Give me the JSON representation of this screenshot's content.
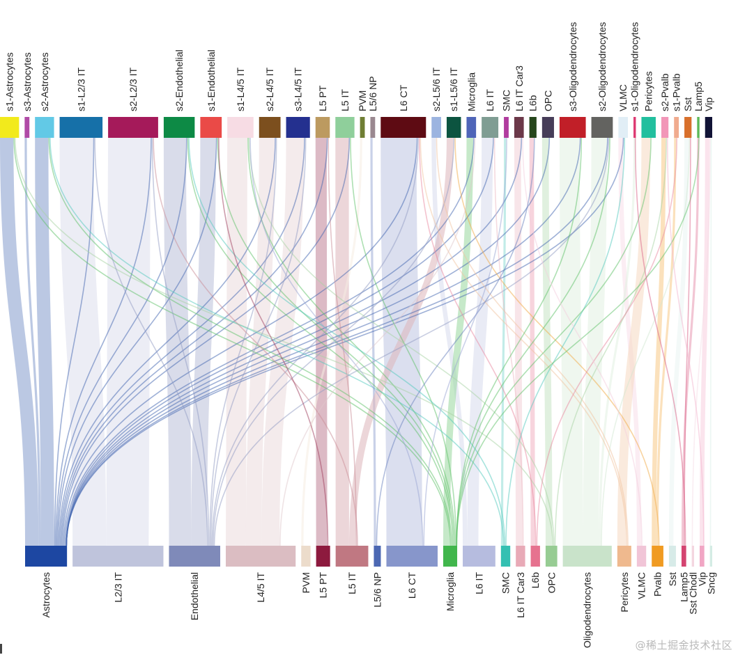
{
  "chart_data": {
    "type": "sankey",
    "title": "",
    "orientation": "vertical",
    "top_nodes": [
      {
        "name": "s1-Astrocytes",
        "color": "#f2ea1c",
        "value": 8
      },
      {
        "name": "s3-Astrocytes",
        "color": "#b04aa6",
        "value": 2
      },
      {
        "name": "s2-Astrocytes",
        "color": "#62c9e6",
        "value": 8
      },
      {
        "name": "s1-L2/3 IT",
        "color": "#1670a8",
        "value": 18
      },
      {
        "name": "s2-L2/3 IT",
        "color": "#a51a5a",
        "value": 21
      },
      {
        "name": "s2-Endothelial",
        "color": "#0d8a45",
        "value": 13
      },
      {
        "name": "s1-Endothelial",
        "color": "#ea4a47",
        "value": 9
      },
      {
        "name": "s1-L4/5 IT",
        "color": "#f7dce4",
        "value": 11
      },
      {
        "name": "s2-L4/5 IT",
        "color": "#7c4f1e",
        "value": 9
      },
      {
        "name": "s3-L4/5 IT",
        "color": "#24308f",
        "value": 10
      },
      {
        "name": "L5 PT",
        "color": "#bc9a60",
        "value": 6
      },
      {
        "name": "L5 IT",
        "color": "#8fcf9b",
        "value": 8
      },
      {
        "name": "PVM",
        "color": "#6f7e34",
        "value": 2
      },
      {
        "name": "L5/6 NP",
        "color": "#9a8890",
        "value": 2
      },
      {
        "name": "L6 CT",
        "color": "#5e0b13",
        "value": 19
      },
      {
        "name": "s2-L5/6 IT",
        "color": "#9cb4e0",
        "value": 4
      },
      {
        "name": "s1-L5/6 IT",
        "color": "#0c5440",
        "value": 6
      },
      {
        "name": "Microglia",
        "color": "#4f65b8",
        "value": 4
      },
      {
        "name": "L6 IT",
        "color": "#7f9d93",
        "value": 7
      },
      {
        "name": "SMC",
        "color": "#b03c9e",
        "value": 2
      },
      {
        "name": "L6 IT Car3",
        "color": "#6c3849",
        "value": 4
      },
      {
        "name": "L6b",
        "color": "#26461c",
        "value": 3
      },
      {
        "name": "OPC",
        "color": "#463d58",
        "value": 5
      },
      {
        "name": "s3-Oligodendrocytes",
        "color": "#c11f28",
        "value": 11
      },
      {
        "name": "s2-Oligodendrocytes",
        "color": "#636360",
        "value": 9
      },
      {
        "name": "VLMC",
        "color": "#e1eef6",
        "value": 4
      },
      {
        "name": "s1-Oligodendrocytes",
        "color": "#de3a72",
        "value": 1
      },
      {
        "name": "Pericytes",
        "color": "#22bf9e",
        "value": 6
      },
      {
        "name": "s2-Pvalb",
        "color": "#f296b8",
        "value": 3
      },
      {
        "name": "s1-Pvalb",
        "color": "#f0ab8e",
        "value": 2
      },
      {
        "name": "Sst",
        "color": "#d8702c",
        "value": 3
      },
      {
        "name": "Lamp5",
        "color": "#5db858",
        "value": 1
      },
      {
        "name": "Vip",
        "color": "#111336",
        "value": 3
      }
    ],
    "bottom_nodes": [
      {
        "name": "Astrocytes",
        "color": "#1d47a2",
        "value": 18
      },
      {
        "name": "L2/3 IT",
        "color": "#bfc4dc",
        "value": 39
      },
      {
        "name": "Endothelial",
        "color": "#7f8ab9",
        "value": 22
      },
      {
        "name": "L4/5 IT",
        "color": "#dbbdc2",
        "value": 30
      },
      {
        "name": "PVM",
        "color": "#ecdccb",
        "value": 4
      },
      {
        "name": "L5 PT",
        "color": "#8d1a3e",
        "value": 6
      },
      {
        "name": "L5 IT",
        "color": "#c07882",
        "value": 14
      },
      {
        "name": "L5/6 NP",
        "color": "#4c68b3",
        "value": 3
      },
      {
        "name": "L6 CT",
        "color": "#8796cb",
        "value": 22
      },
      {
        "name": "Microglia",
        "color": "#41b64c",
        "value": 6
      },
      {
        "name": "L6 IT",
        "color": "#b6bcdf",
        "value": 14
      },
      {
        "name": "SMC",
        "color": "#34c0b2",
        "value": 4
      },
      {
        "name": "L6 IT Car3",
        "color": "#e8aab7",
        "value": 4
      },
      {
        "name": "L6b",
        "color": "#e6728f",
        "value": 4
      },
      {
        "name": "OPC",
        "color": "#97cc93",
        "value": 5
      },
      {
        "name": "Oligodendrocytes",
        "color": "#c9e3ca",
        "value": 21
      },
      {
        "name": "Pericytes",
        "color": "#efb98e",
        "value": 6
      },
      {
        "name": "VLMC",
        "color": "#f1c5d7",
        "value": 4
      },
      {
        "name": "Pvalb",
        "color": "#f09b22",
        "value": 5
      },
      {
        "name": "Sst",
        "color": "#d7ebe8",
        "value": 3
      },
      {
        "name": "Lamp5",
        "color": "#d44471",
        "value": 2
      },
      {
        "name": "Sst Chodl",
        "color": "#f4d6e0",
        "value": 1
      },
      {
        "name": "Vip",
        "color": "#f1a6c4",
        "value": 2
      },
      {
        "name": "Sncg",
        "color": "#d4ece4",
        "value": 1
      }
    ],
    "links": [
      {
        "source": "s1-Astrocytes",
        "target": "Astrocytes",
        "value": 6
      },
      {
        "source": "s3-Astrocytes",
        "target": "Astrocytes",
        "value": 1
      },
      {
        "source": "s2-Astrocytes",
        "target": "Astrocytes",
        "value": 6
      },
      {
        "source": "s1-L2/3 IT",
        "target": "L2/3 IT",
        "value": 15
      },
      {
        "source": "s2-L2/3 IT",
        "target": "L2/3 IT",
        "value": 19
      },
      {
        "source": "s2-Endothelial",
        "target": "Endothelial",
        "value": 10
      },
      {
        "source": "s1-Endothelial",
        "target": "Endothelial",
        "value": 7
      },
      {
        "source": "s1-L4/5 IT",
        "target": "L4/5 IT",
        "value": 9
      },
      {
        "source": "s2-L4/5 IT",
        "target": "L4/5 IT",
        "value": 7
      },
      {
        "source": "s3-L4/5 IT",
        "target": "L4/5 IT",
        "value": 8
      },
      {
        "source": "L5 PT",
        "target": "L5 PT",
        "value": 5
      },
      {
        "source": "L5 IT",
        "target": "L5 IT",
        "value": 6
      },
      {
        "source": "PVM",
        "target": "PVM",
        "value": 1
      },
      {
        "source": "L5/6 NP",
        "target": "L5/6 NP",
        "value": 1
      },
      {
        "source": "L6 CT",
        "target": "L6 CT",
        "value": 16
      },
      {
        "source": "s2-L5/6 IT",
        "target": "L6 IT",
        "value": 2
      },
      {
        "source": "s1-L5/6 IT",
        "target": "L5 IT",
        "value": 3
      },
      {
        "source": "Microglia",
        "target": "Microglia",
        "value": 3
      },
      {
        "source": "L6 IT",
        "target": "L6 IT",
        "value": 5
      },
      {
        "source": "SMC",
        "target": "SMC",
        "value": 1
      },
      {
        "source": "L6 IT Car3",
        "target": "L6 IT Car3",
        "value": 3
      },
      {
        "source": "L6b",
        "target": "L6b",
        "value": 2
      },
      {
        "source": "OPC",
        "target": "OPC",
        "value": 3
      },
      {
        "source": "s3-Oligodendrocytes",
        "target": "Oligodendrocytes",
        "value": 9
      },
      {
        "source": "s2-Oligodendrocytes",
        "target": "Oligodendrocytes",
        "value": 7
      },
      {
        "source": "VLMC",
        "target": "VLMC",
        "value": 2
      },
      {
        "source": "s1-Oligodendrocytes",
        "target": "Oligodendrocytes",
        "value": 1
      },
      {
        "source": "Pericytes",
        "target": "Pericytes",
        "value": 4
      },
      {
        "source": "s2-Pvalb",
        "target": "Pvalb",
        "value": 2
      },
      {
        "source": "s1-Pvalb",
        "target": "Pvalb",
        "value": 1
      },
      {
        "source": "Sst",
        "target": "Sst",
        "value": 2
      },
      {
        "source": "Lamp5",
        "target": "Lamp5",
        "value": 1
      },
      {
        "source": "Vip",
        "target": "Vip",
        "value": 2
      },
      {
        "source": "s1-L2/3 IT",
        "target": "Astrocytes",
        "value": 0.5
      },
      {
        "source": "s2-L2/3 IT",
        "target": "Astrocytes",
        "value": 0.5
      },
      {
        "source": "s2-Endothelial",
        "target": "Astrocytes",
        "value": 0.5
      },
      {
        "source": "s1-Endothelial",
        "target": "Astrocytes",
        "value": 0.5
      },
      {
        "source": "s2-L4/5 IT",
        "target": "Astrocytes",
        "value": 0.5
      },
      {
        "source": "s3-L4/5 IT",
        "target": "Astrocytes",
        "value": 0.5
      },
      {
        "source": "L5 PT",
        "target": "Astrocytes",
        "value": 0.5
      },
      {
        "source": "L5 IT",
        "target": "Astrocytes",
        "value": 0.5
      },
      {
        "source": "L6 CT",
        "target": "Astrocytes",
        "value": 0.5
      },
      {
        "source": "Microglia",
        "target": "Astrocytes",
        "value": 0.5
      },
      {
        "source": "L6 IT",
        "target": "Astrocytes",
        "value": 0.5
      },
      {
        "source": "L6 IT Car3",
        "target": "Astrocytes",
        "value": 0.5
      },
      {
        "source": "OPC",
        "target": "Astrocytes",
        "value": 0.5
      },
      {
        "source": "s3-Oligodendrocytes",
        "target": "Astrocytes",
        "value": 0.5
      },
      {
        "source": "s2-Oligodendrocytes",
        "target": "Astrocytes",
        "value": 0.5
      },
      {
        "source": "VLMC",
        "target": "Astrocytes",
        "value": 0.5
      },
      {
        "source": "s1-Astrocytes",
        "target": "Microglia",
        "value": 0.5
      },
      {
        "source": "s2-Astrocytes",
        "target": "Microglia",
        "value": 0.5
      },
      {
        "source": "s2-Endothelial",
        "target": "Microglia",
        "value": 0.5
      },
      {
        "source": "s1-Endothelial",
        "target": "Microglia",
        "value": 0.5
      },
      {
        "source": "s1-L4/5 IT",
        "target": "Microglia",
        "value": 0.5
      },
      {
        "source": "L5 IT",
        "target": "Microglia",
        "value": 0.5
      },
      {
        "source": "s1-Astrocytes",
        "target": "OPC",
        "value": 0.5
      },
      {
        "source": "s2-Astrocytes",
        "target": "SMC",
        "value": 0.5
      },
      {
        "source": "s2-Endothelial",
        "target": "SMC",
        "value": 0.5
      },
      {
        "source": "s1-L4/5 IT",
        "target": "OPC",
        "value": 0.5
      },
      {
        "source": "s1-L2/3 IT",
        "target": "Endothelial",
        "value": 0.5
      },
      {
        "source": "s2-L2/3 IT",
        "target": "Endothelial",
        "value": 0.5
      },
      {
        "source": "s2-L4/5 IT",
        "target": "Endothelial",
        "value": 0.5
      },
      {
        "source": "s3-L4/5 IT",
        "target": "Endothelial",
        "value": 0.5
      },
      {
        "source": "L6 CT",
        "target": "Endothelial",
        "value": 0.5
      },
      {
        "source": "s1-L5/6 IT",
        "target": "Endothelial",
        "value": 0.5
      },
      {
        "source": "s2-Oligodendrocytes",
        "target": "Endothelial",
        "value": 0.5
      },
      {
        "source": "L5 PT",
        "target": "L5 IT",
        "value": 0.5
      },
      {
        "source": "s2-L2/3 IT",
        "target": "L5 IT",
        "value": 0.5
      },
      {
        "source": "s1-Endothelial",
        "target": "L5 PT",
        "value": 0.5
      },
      {
        "source": "L6 CT",
        "target": "L6b",
        "value": 0.5
      },
      {
        "source": "L6 CT",
        "target": "Pericytes",
        "value": 0.5
      },
      {
        "source": "s2-L5/6 IT",
        "target": "Pericytes",
        "value": 0.5
      },
      {
        "source": "s1-L5/6 IT",
        "target": "Pvalb",
        "value": 0.5
      },
      {
        "source": "L6 IT",
        "target": "L6 IT Car3",
        "value": 0.5
      },
      {
        "source": "s1-L4/5 IT",
        "target": "L6 CT",
        "value": 0.5
      },
      {
        "source": "Microglia",
        "target": "L4/5 IT",
        "value": 0.5
      },
      {
        "source": "s3-Oligodendrocytes",
        "target": "Microglia",
        "value": 0.5
      },
      {
        "source": "s2-Oligodendrocytes",
        "target": "Microglia",
        "value": 0.5
      },
      {
        "source": "VLMC",
        "target": "SMC",
        "value": 0.5
      },
      {
        "source": "Pericytes",
        "target": "Microglia",
        "value": 0.5
      },
      {
        "source": "s2-Pvalb",
        "target": "OPC",
        "value": 0.5
      },
      {
        "source": "s1-Pvalb",
        "target": "L6b",
        "value": 0.5
      },
      {
        "source": "Sst",
        "target": "Oligodendrocytes",
        "value": 0.5
      },
      {
        "source": "Lamp5",
        "target": "Microglia",
        "value": 0.5
      },
      {
        "source": "Vip",
        "target": "Sst Chodl",
        "value": 0.5
      },
      {
        "source": "Vip",
        "target": "Sncg",
        "value": 0.5
      },
      {
        "source": "Sst",
        "target": "Lamp5",
        "value": 0.5
      },
      {
        "source": "s2-Pvalb",
        "target": "Vip",
        "value": 0.5
      },
      {
        "source": "s1-Oligodendrocytes",
        "target": "Lamp5",
        "value": 0.5
      },
      {
        "source": "L6 IT Car3",
        "target": "VLMC",
        "value": 0.5
      },
      {
        "source": "L6b",
        "target": "L5/6 NP",
        "value": 0.5
      },
      {
        "source": "SMC",
        "target": "L6 CT",
        "value": 0.5
      }
    ],
    "xlabel": "",
    "ylabel": "",
    "legend": "none"
  },
  "watermark": "@稀土掘金技术社区"
}
